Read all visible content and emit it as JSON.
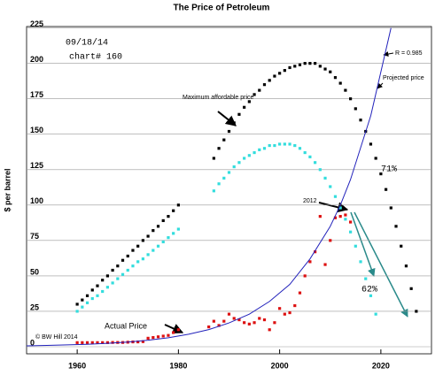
{
  "chart_data": {
    "type": "scatter",
    "title": "The Price of Petroleum",
    "y_label": "$ per barrel",
    "xlim": [
      1950,
      2030
    ],
    "ylim": [
      -5,
      226
    ],
    "xticks": [
      1960,
      1980,
      2000,
      2020
    ],
    "yticks": [
      0,
      25,
      50,
      75,
      100,
      125,
      150,
      175,
      200,
      225
    ],
    "grid": true,
    "series": [
      {
        "name": "Maximum affordable price",
        "color": "#000000",
        "x": [
          1960,
          1961,
          1962,
          1963,
          1964,
          1965,
          1966,
          1967,
          1968,
          1969,
          1970,
          1971,
          1972,
          1973,
          1974,
          1975,
          1976,
          1977,
          1978,
          1979,
          1980,
          1987,
          1988,
          1989,
          1990,
          1991,
          1992,
          1993,
          1994,
          1995,
          1996,
          1997,
          1998,
          1999,
          2000,
          2001,
          2002,
          2003,
          2004,
          2005,
          2006,
          2007,
          2008,
          2009,
          2010,
          2011,
          2012,
          2013,
          2014,
          2015,
          2016,
          2017,
          2018,
          2019,
          2020,
          2021,
          2022,
          2023,
          2024,
          2025,
          2026,
          2027
        ],
        "values": [
          30,
          33,
          36,
          40,
          43,
          47,
          50,
          54,
          57,
          61,
          64,
          68,
          71,
          75,
          78,
          82,
          85,
          89,
          92,
          96,
          100,
          133,
          140,
          146,
          152,
          158,
          164,
          169,
          173,
          178,
          181,
          185,
          188,
          191,
          193,
          195,
          197,
          198,
          199,
          200,
          200,
          200,
          198,
          196,
          194,
          190,
          186,
          181,
          175,
          168,
          160,
          152,
          143,
          133,
          122,
          111,
          98,
          85,
          71,
          57,
          41,
          25
        ]
      },
      {
        "color": "#33dddd",
        "x": [
          1960,
          1961,
          1962,
          1963,
          1964,
          1965,
          1966,
          1967,
          1968,
          1969,
          1970,
          1971,
          1972,
          1973,
          1974,
          1975,
          1976,
          1977,
          1978,
          1979,
          1980,
          1987,
          1988,
          1989,
          1990,
          1991,
          1992,
          1993,
          1994,
          1995,
          1996,
          1997,
          1998,
          1999,
          2000,
          2001,
          2002,
          2003,
          2004,
          2005,
          2006,
          2007,
          2008,
          2009,
          2010,
          2011,
          2012,
          2013,
          2014,
          2015,
          2016,
          2017,
          2018,
          2019
        ],
        "values": [
          25,
          28,
          31,
          34,
          36,
          39,
          42,
          45,
          48,
          51,
          54,
          57,
          60,
          62,
          65,
          68,
          71,
          74,
          77,
          80,
          83,
          110,
          115,
          119,
          123,
          127,
          130,
          133,
          135,
          137,
          139,
          140,
          142,
          142,
          143,
          143,
          143,
          142,
          140,
          137,
          134,
          130,
          125,
          119,
          113,
          106,
          98,
          90,
          81,
          71,
          60,
          48,
          36,
          23
        ]
      },
      {
        "name": "Actual Price",
        "color": "#dd1111",
        "x": [
          1960,
          1961,
          1962,
          1963,
          1964,
          1965,
          1966,
          1967,
          1968,
          1969,
          1970,
          1971,
          1972,
          1973,
          1974,
          1975,
          1976,
          1977,
          1978,
          1979,
          1980,
          1986,
          1987,
          1988,
          1989,
          1990,
          1991,
          1992,
          1993,
          1994,
          1995,
          1996,
          1997,
          1998,
          1999,
          2000,
          2001,
          2002,
          2003,
          2004,
          2005,
          2006,
          2007,
          2008,
          2009,
          2010,
          2011,
          2012,
          2013,
          2014
        ],
        "values": [
          2.9,
          2.9,
          2.9,
          2.9,
          2.9,
          2.9,
          2.9,
          3,
          3,
          3,
          3.2,
          3.4,
          3.4,
          3.6,
          6,
          6.5,
          7,
          7.5,
          8,
          10,
          12,
          14,
          18,
          15,
          18,
          23,
          20,
          19,
          17,
          16,
          17,
          20,
          19,
          12,
          17,
          27,
          23,
          24,
          29,
          38,
          50,
          60,
          67,
          92,
          58,
          75,
          91,
          92,
          93,
          88
        ]
      },
      {
        "name": "Projected price",
        "color": "#2222bb",
        "type": "line",
        "x": [
          1950,
          1954,
          1958,
          1962,
          1966,
          1970,
          1974,
          1978,
          1982,
          1986,
          1990,
          1994,
          1998,
          2002,
          2006,
          2010,
          2012,
          2014,
          2018,
          2022
        ],
        "values": [
          0.65,
          0.9,
          1.3,
          1.7,
          2.4,
          3.3,
          4.6,
          6.3,
          8.8,
          12.1,
          16.8,
          23,
          32,
          44,
          62,
          85,
          100,
          118,
          163,
          225
        ]
      }
    ],
    "annotations": [
      "09/18/14",
      "chart# 160",
      "R = 0.985",
      "2012",
      "71%",
      "62%",
      "© BW Hill 2014"
    ]
  }
}
